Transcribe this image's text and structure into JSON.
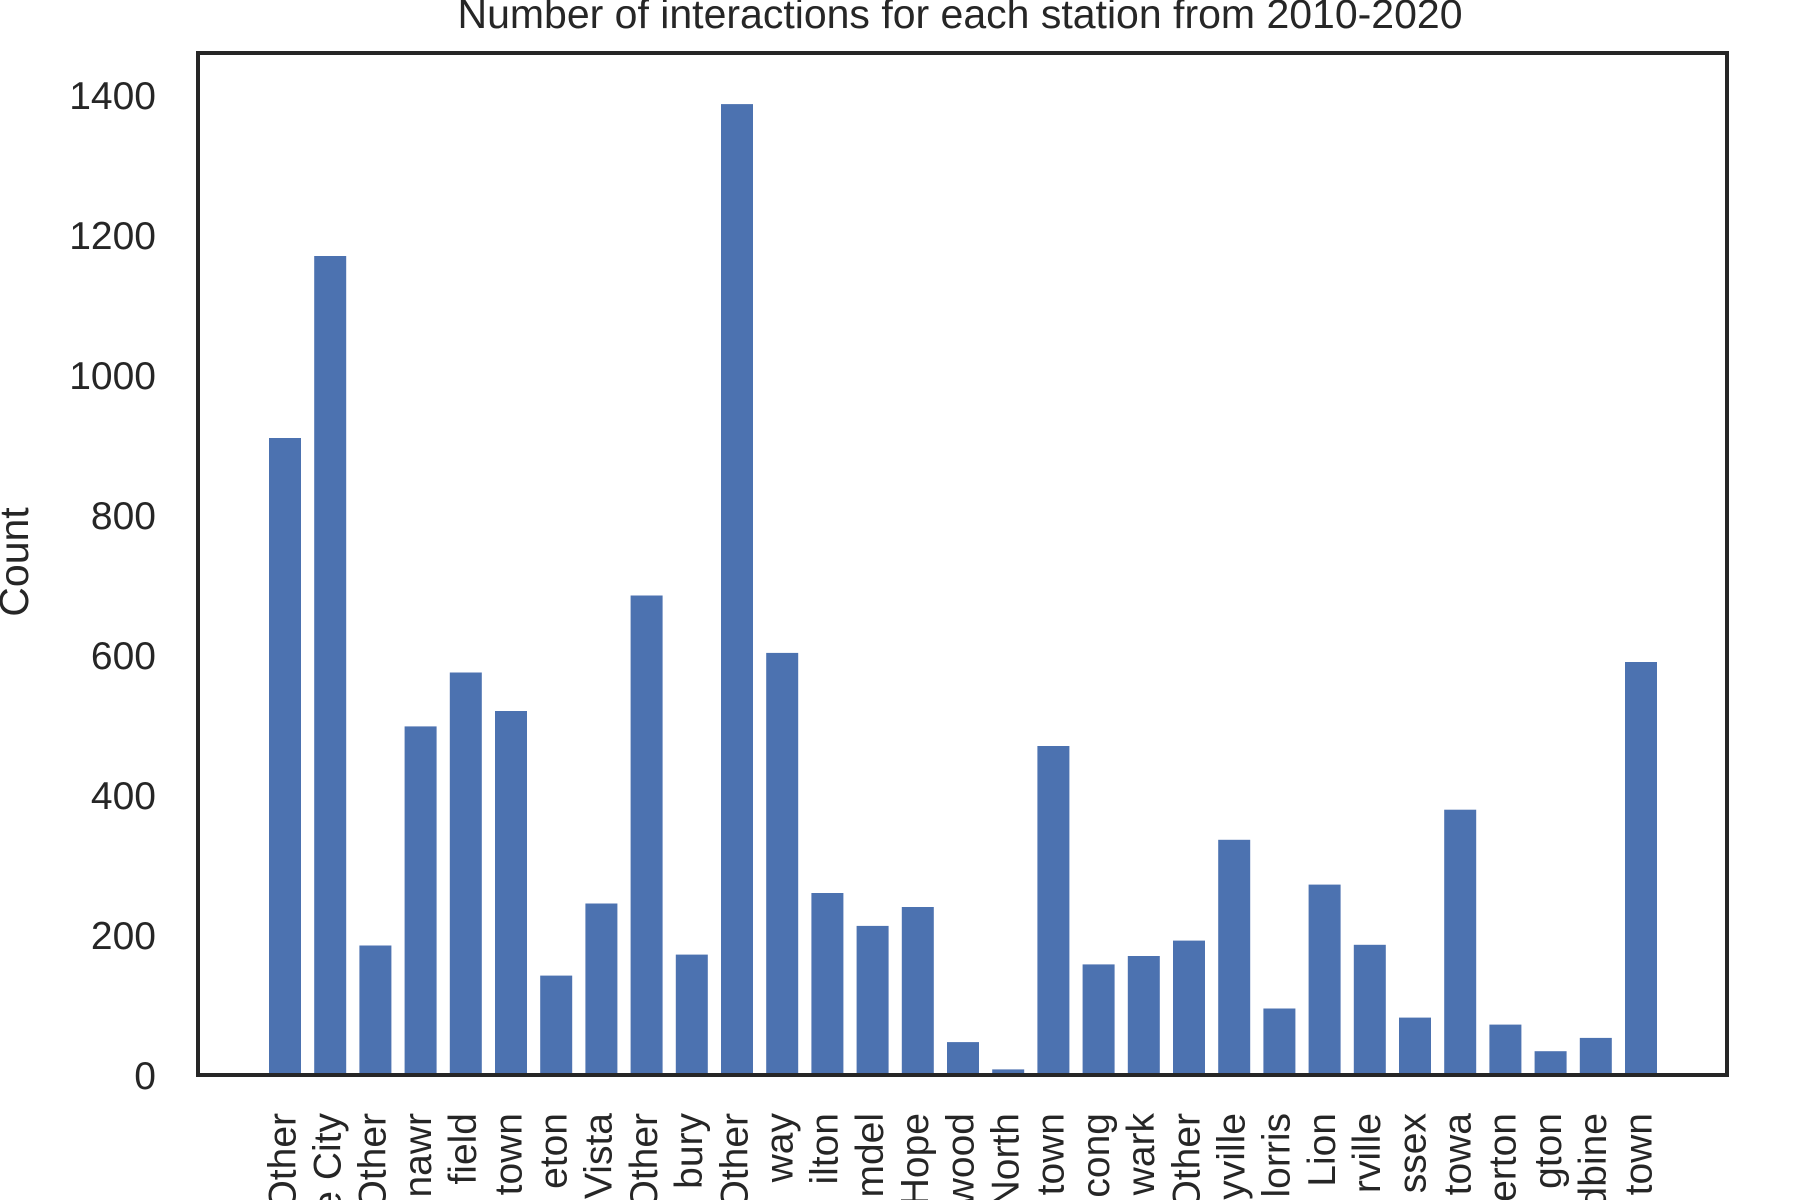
{
  "chart_data": {
    "type": "bar",
    "title": "Number of interactions for each station from 2010-2020",
    "xlabel": "",
    "ylabel": "Count",
    "ylim": [
      0,
      1460
    ],
    "yticks": [
      0,
      200,
      400,
      600,
      800,
      1000,
      1200,
      1400
    ],
    "grid": false,
    "bar_color": "#4c72b0",
    "axis_color": "#262626",
    "categories": [
      "Other",
      "e City",
      "Other",
      "nawr",
      "field",
      "town",
      "eton",
      "Vista",
      "Other",
      "bury",
      "Other",
      "way",
      "ilton",
      "mdel",
      "Hope",
      "wood",
      "North",
      "town",
      "cong",
      "wark",
      "Other",
      "yville",
      "lorris",
      "Lion",
      "rville",
      "ssex",
      "towa",
      "erton",
      "gton",
      "dbine",
      "town"
    ],
    "values": [
      910,
      1170,
      185,
      498,
      575,
      520,
      142,
      245,
      685,
      172,
      1387,
      603,
      260,
      213,
      240,
      47,
      8,
      470,
      158,
      170,
      192,
      336,
      95,
      272,
      186,
      82,
      379,
      72,
      34,
      53,
      590
    ]
  }
}
